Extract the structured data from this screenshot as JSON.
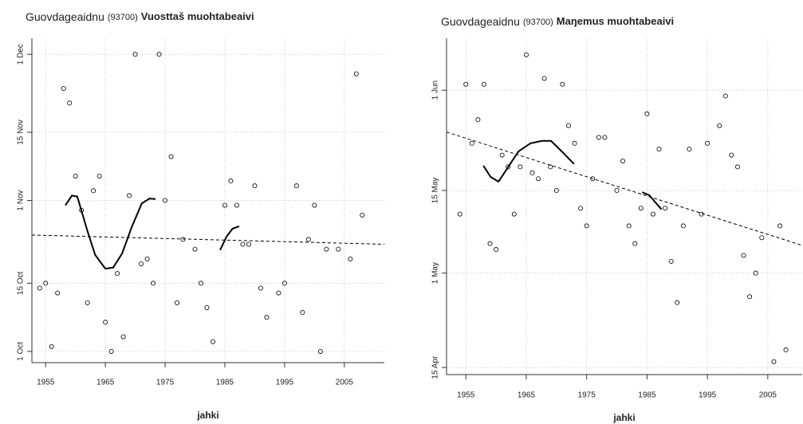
{
  "chart_data": [
    {
      "type": "scatter",
      "title": "Guovdageaidnu",
      "station": "(93700)",
      "subtitle": "Vuosttaš muohtabeaivi",
      "xlabel": "jahki",
      "color": "#000000",
      "grid": true,
      "xlim": [
        1952.7,
        2011.7
      ],
      "ylim": [
        271.7,
        338.3
      ],
      "xticks": [
        1955,
        1965,
        1975,
        1985,
        1995,
        2005
      ],
      "yticks": [
        {
          "value": 274,
          "label": "1 Oct"
        },
        {
          "value": 288,
          "label": "15 Oct"
        },
        {
          "value": 305,
          "label": "1 Nov"
        },
        {
          "value": 319,
          "label": "15 Nov"
        },
        {
          "value": 335,
          "label": "1 Dec"
        }
      ],
      "points": {
        "x": [
          1954,
          1955,
          1956,
          1957,
          1958,
          1959,
          1960,
          1961,
          1962,
          1963,
          1964,
          1965,
          1966,
          1967,
          1968,
          1969,
          1970,
          1971,
          1972,
          1973,
          1974,
          1975,
          1976,
          1977,
          1978,
          1980,
          1981,
          1982,
          1983,
          1985,
          1986,
          1987,
          1988,
          1989,
          1990,
          1991,
          1992,
          1994,
          1995,
          1997,
          1998,
          1999,
          2000,
          2001,
          2002,
          2004,
          2006,
          2007,
          2008
        ],
        "y": [
          287,
          288,
          275,
          286,
          328,
          325,
          310,
          303,
          284,
          307,
          310,
          280,
          274,
          290,
          277,
          306,
          335,
          292,
          293,
          288,
          335,
          305,
          314,
          284,
          297,
          295,
          288,
          283,
          276,
          304,
          309,
          304,
          296,
          296,
          308,
          287,
          281,
          286,
          288,
          308,
          282,
          297,
          304,
          274,
          295,
          295,
          293,
          331,
          302
        ]
      },
      "trend": {
        "x": [
          1952.7,
          2011.7
        ],
        "y": [
          297.9,
          296
        ]
      },
      "smooth": [
        {
          "x": [
            1958.3,
            1959.4,
            1960.3,
            1962,
            1963.3,
            1965,
            1966.3,
            1967.8,
            1969.4,
            1971.1,
            1972.4,
            1973.4
          ],
          "y": [
            304,
            306,
            305.8,
            298.7,
            293.8,
            291,
            291.2,
            294.1,
            299.5,
            304.4,
            305.4,
            305.3
          ]
        },
        {
          "x": [
            1984.2,
            1985.3,
            1986.3,
            1987.4
          ],
          "y": [
            294.8,
            297.6,
            299.2,
            299.7
          ]
        }
      ]
    },
    {
      "type": "scatter",
      "title": "Guovdageaidnu",
      "station": "(93700)",
      "subtitle": "Maŋemus muohtabeaivi",
      "xlabel": "jahki",
      "color": "#000000",
      "grid": true,
      "xlim": [
        1951.8,
        2010.7
      ],
      "ylim": [
        103.8,
        160.8
      ],
      "xticks": [
        1955,
        1965,
        1975,
        1985,
        1995,
        2005
      ],
      "yticks": [
        {
          "value": 105,
          "label": "15 Apr"
        },
        {
          "value": 121,
          "label": "1 May"
        },
        {
          "value": 135,
          "label": "15 May"
        },
        {
          "value": 152,
          "label": "1 Jun"
        }
      ],
      "points": {
        "x": [
          1954,
          1955,
          1956,
          1957,
          1958,
          1959,
          1960,
          1961,
          1962,
          1963,
          1964,
          1965,
          1966,
          1967,
          1968,
          1969,
          1970,
          1971,
          1972,
          1973,
          1974,
          1975,
          1976,
          1977,
          1978,
          1980,
          1981,
          1982,
          1983,
          1984,
          1985,
          1986,
          1987,
          1988,
          1989,
          1990,
          1991,
          1992,
          1994,
          1995,
          1997,
          1998,
          1999,
          2000,
          2001,
          2002,
          2003,
          2004,
          2006,
          2007,
          2008
        ],
        "y": [
          131,
          153,
          143,
          147,
          153,
          126,
          125,
          141,
          139,
          131,
          139,
          158,
          138,
          137,
          154,
          139,
          135,
          153,
          146,
          143,
          132,
          129,
          137,
          144,
          144,
          135,
          140,
          129,
          126,
          132,
          148,
          131,
          142,
          132,
          123,
          116,
          129,
          142,
          131,
          143,
          146,
          151,
          141,
          139,
          124,
          117,
          121,
          127,
          106,
          129,
          108
        ]
      },
      "trend": {
        "x": [
          1951.8,
          2010.7
        ],
        "y": [
          144.9,
          125.7
        ]
      },
      "smooth": [
        {
          "x": [
            1957.9,
            1959.1,
            1960.4,
            1961.7,
            1963.7,
            1965.7,
            1967.6,
            1969.1,
            1970.9,
            1972.9
          ],
          "y": [
            139.2,
            137.3,
            136.5,
            138.5,
            141.6,
            143,
            143.4,
            143.4,
            141.6,
            139.5
          ]
        },
        {
          "x": [
            1984.2,
            1985.4,
            1986.3,
            1987.4
          ],
          "y": [
            134.7,
            134.2,
            133.1,
            131.8
          ]
        }
      ]
    }
  ]
}
